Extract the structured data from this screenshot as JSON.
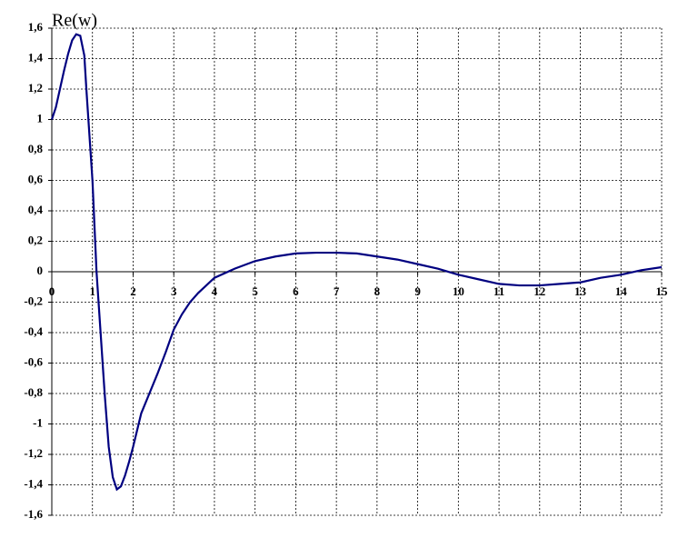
{
  "chart_data": {
    "type": "line",
    "y_label": "Re(w)",
    "x": [
      0,
      0.1,
      0.2,
      0.3,
      0.4,
      0.5,
      0.6,
      0.7,
      0.8,
      0.85,
      0.9,
      1.0,
      1.1,
      1.2,
      1.3,
      1.4,
      1.5,
      1.6,
      1.7,
      1.8,
      1.9,
      2.0,
      2.2,
      2.4,
      2.6,
      2.8,
      3.0,
      3.2,
      3.4,
      3.6,
      3.8,
      4.0,
      4.5,
      5.0,
      5.5,
      6.0,
      6.5,
      7.0,
      7.5,
      8.0,
      8.5,
      9.0,
      9.5,
      10.0,
      10.5,
      11.0,
      11.5,
      12.0,
      12.5,
      13.0,
      13.5,
      14.0,
      14.5,
      15.0
    ],
    "series": [
      {
        "color": "#000080",
        "values": [
          1.0,
          1.08,
          1.2,
          1.32,
          1.43,
          1.52,
          1.56,
          1.55,
          1.42,
          1.2,
          1.0,
          0.6,
          0.0,
          -0.4,
          -0.8,
          -1.15,
          -1.35,
          -1.43,
          -1.41,
          -1.34,
          -1.25,
          -1.15,
          -0.93,
          -0.8,
          -0.67,
          -0.53,
          -0.38,
          -0.28,
          -0.2,
          -0.14,
          -0.09,
          -0.04,
          0.02,
          0.07,
          0.1,
          0.12,
          0.125,
          0.125,
          0.12,
          0.1,
          0.08,
          0.05,
          0.02,
          -0.02,
          -0.05,
          -0.08,
          -0.09,
          -0.09,
          -0.08,
          -0.07,
          -0.04,
          -0.02,
          0.01,
          0.03
        ]
      }
    ],
    "xlim": [
      0,
      15
    ],
    "xticks": [
      0,
      1,
      2,
      3,
      4,
      5,
      6,
      7,
      8,
      9,
      10,
      11,
      12,
      13,
      14,
      15
    ],
    "ylim": [
      -1.6,
      1.6
    ],
    "yticks": [
      {
        "value": -1.6,
        "label": "-1,6"
      },
      {
        "value": -1.4,
        "label": "-1,4"
      },
      {
        "value": -1.2,
        "label": "-1,2"
      },
      -1,
      {
        "value": -0.8,
        "label": "-0,8"
      },
      {
        "value": -0.6,
        "label": "-0,6"
      },
      {
        "value": -0.4,
        "label": "-0,4"
      },
      {
        "value": -0.2,
        "label": "-0,2"
      },
      0,
      {
        "value": 0.2,
        "label": "0,2"
      },
      {
        "value": 0.4,
        "label": "0,4"
      },
      {
        "value": 0.6,
        "label": "0,6"
      },
      {
        "value": 0.8,
        "label": "0,8"
      },
      1,
      {
        "value": 1.2,
        "label": "1,2"
      },
      {
        "value": 1.4,
        "label": "1,4"
      },
      {
        "value": 1.6,
        "label": "1,6"
      }
    ],
    "grid": true
  }
}
